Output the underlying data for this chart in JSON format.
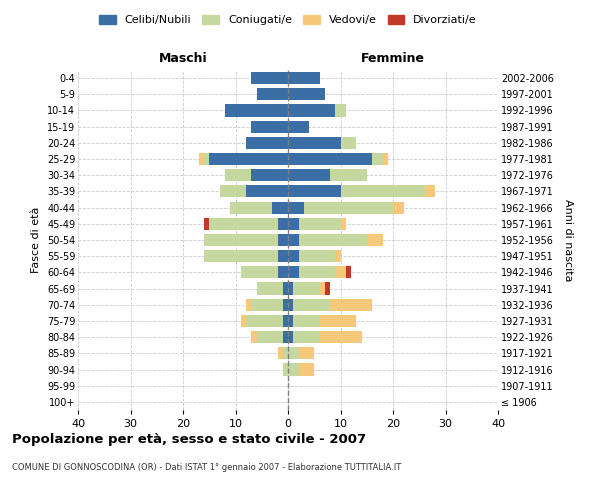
{
  "age_groups": [
    "100+",
    "95-99",
    "90-94",
    "85-89",
    "80-84",
    "75-79",
    "70-74",
    "65-69",
    "60-64",
    "55-59",
    "50-54",
    "45-49",
    "40-44",
    "35-39",
    "30-34",
    "25-29",
    "20-24",
    "15-19",
    "10-14",
    "5-9",
    "0-4"
  ],
  "birth_years": [
    "≤ 1906",
    "1907-1911",
    "1912-1916",
    "1917-1921",
    "1922-1926",
    "1927-1931",
    "1932-1936",
    "1937-1941",
    "1942-1946",
    "1947-1951",
    "1952-1956",
    "1957-1961",
    "1962-1966",
    "1967-1971",
    "1972-1976",
    "1977-1981",
    "1982-1986",
    "1987-1991",
    "1992-1996",
    "1997-2001",
    "2002-2006"
  ],
  "males": {
    "celibe": [
      0,
      0,
      0,
      0,
      1,
      1,
      1,
      1,
      2,
      2,
      2,
      2,
      3,
      8,
      7,
      15,
      8,
      7,
      12,
      6,
      7
    ],
    "coniugato": [
      0,
      0,
      1,
      1,
      5,
      7,
      6,
      5,
      7,
      14,
      14,
      13,
      8,
      5,
      5,
      1,
      0,
      0,
      0,
      0,
      0
    ],
    "vedovo": [
      0,
      0,
      0,
      1,
      1,
      1,
      1,
      0,
      0,
      0,
      0,
      0,
      0,
      0,
      0,
      1,
      0,
      0,
      0,
      0,
      0
    ],
    "divorziato": [
      0,
      0,
      0,
      0,
      0,
      0,
      0,
      0,
      0,
      0,
      0,
      1,
      0,
      0,
      0,
      0,
      0,
      0,
      0,
      0,
      0
    ]
  },
  "females": {
    "nubile": [
      0,
      0,
      0,
      0,
      1,
      1,
      1,
      1,
      2,
      2,
      2,
      2,
      3,
      10,
      8,
      16,
      10,
      4,
      9,
      7,
      6
    ],
    "coniugata": [
      0,
      0,
      2,
      2,
      5,
      5,
      7,
      5,
      7,
      7,
      13,
      8,
      17,
      16,
      7,
      2,
      3,
      0,
      2,
      0,
      0
    ],
    "vedova": [
      0,
      0,
      3,
      3,
      8,
      7,
      8,
      1,
      2,
      1,
      3,
      1,
      2,
      2,
      0,
      1,
      0,
      0,
      0,
      0,
      0
    ],
    "divorziata": [
      0,
      0,
      0,
      0,
      0,
      0,
      0,
      1,
      1,
      0,
      0,
      0,
      0,
      0,
      0,
      0,
      0,
      0,
      0,
      0,
      0
    ]
  },
  "colors": {
    "celibe": "#3B6EA5",
    "coniugato": "#C5D8A0",
    "vedovo": "#F5C87A",
    "divorziato": "#C0392B"
  },
  "xlim": 40,
  "title": "Popolazione per età, sesso e stato civile - 2007",
  "subtitle": "COMUNE DI GONNOSCODINA (OR) - Dati ISTAT 1° gennaio 2007 - Elaborazione TUTTITALIA.IT",
  "ylabel_left": "Fasce di età",
  "ylabel_right": "Anni di nascita",
  "xlabel_left": "Maschi",
  "xlabel_right": "Femmine",
  "legend_labels": [
    "Celibi/Nubili",
    "Coniugati/e",
    "Vedovi/e",
    "Divorziati/e"
  ],
  "background_color": "#ffffff",
  "grid_color": "#cccccc"
}
